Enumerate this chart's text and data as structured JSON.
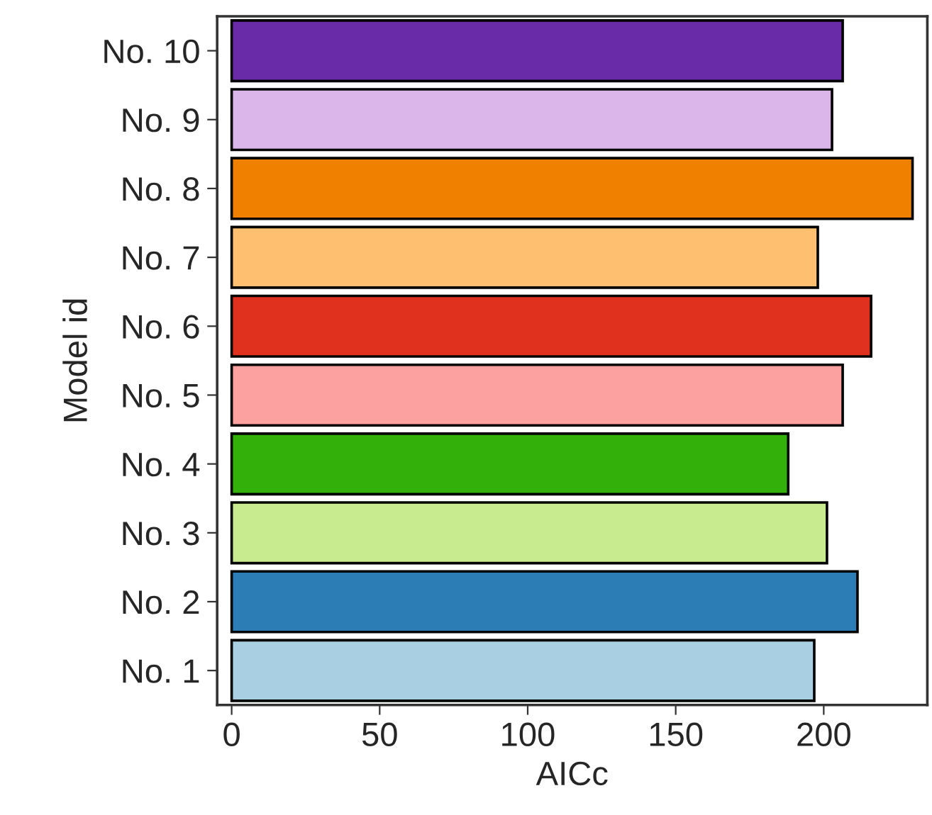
{
  "chart_data": {
    "type": "bar",
    "orientation": "horizontal",
    "xlabel": "AICc",
    "ylabel": "Model id",
    "categories": [
      "No. 10",
      "No. 9",
      "No. 8",
      "No. 7",
      "No. 6",
      "No. 5",
      "No. 4",
      "No. 3",
      "No. 2",
      "No. 1"
    ],
    "values": [
      206.4,
      202.8,
      230.0,
      198.0,
      216.0,
      206.4,
      188.0,
      201.1,
      211.4,
      196.8
    ],
    "colors": [
      "#6a2ba8",
      "#dab6ea",
      "#f08000",
      "#fec070",
      "#e0301e",
      "#fda0a0",
      "#33b00a",
      "#c8eb90",
      "#2c7db5",
      "#a9cfe3"
    ],
    "xlim": [
      -4.9,
      235.0
    ],
    "xticks": [
      0,
      50,
      100,
      150,
      200
    ],
    "grid": false
  }
}
